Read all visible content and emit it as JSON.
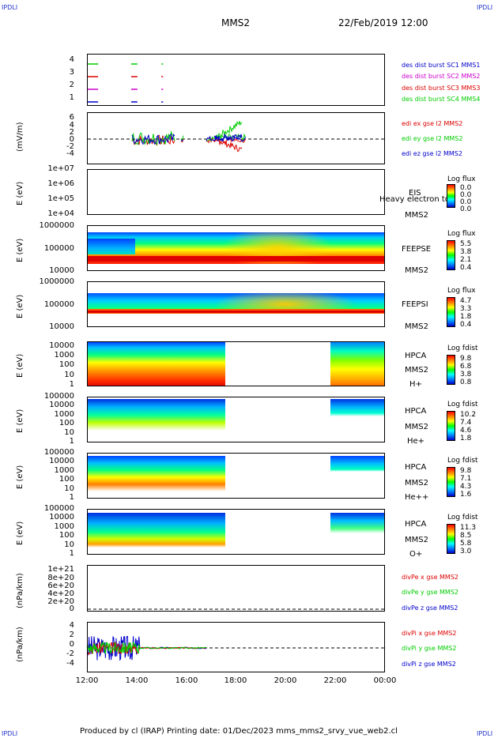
{
  "corner_label": "IPDLI",
  "header": {
    "spacecraft": "MMS2",
    "datetime": "22/Feb/2019 12:00"
  },
  "footer": "Produced by cl (IRAP)   Printing date: 01/Dec/2023   mms_mms2_srvy_vue_web2.cl",
  "x_ticks": [
    "12:00",
    "14:00",
    "16:00",
    "18:00",
    "20:00",
    "22:00",
    "00:00"
  ],
  "panels": {
    "burst": {
      "y_ticks": [
        "4",
        "3",
        "2",
        "1"
      ],
      "legend": [
        "des dist burst SC1 MMS1",
        "des dist burst SC2 MMS2",
        "des dist burst SC3 MMS3",
        "des dist burst SC4 MMS4"
      ],
      "colors": [
        "#0000cc",
        "#cc00cc",
        "#dd0000",
        "#00cc00"
      ]
    },
    "edi": {
      "ylabel": "(mV/m)",
      "y_ticks": [
        "6",
        "4",
        "2",
        "0",
        "-2",
        "-4"
      ],
      "legend": [
        "edi ex gse l2 MMS2",
        "edi ey gse l2 MMS2",
        "edi ez gse l2 MMS2"
      ],
      "colors": [
        "#dd0000",
        "#00cc00",
        "#0000cc"
      ]
    },
    "eis": {
      "ylabel": "E (eV)",
      "y_ticks": [
        "1e+07",
        "1e+06",
        "1e+05",
        "1e+04"
      ],
      "instrument": "EIS",
      "overlay_text": "Heavy electron to",
      "spacecraft": "MMS2",
      "cbar_title": "Log flux",
      "cbar_values": [
        "0.0",
        "0.0",
        "0.0",
        "0.0"
      ]
    },
    "feepse": {
      "ylabel": "E (eV)",
      "y_ticks": [
        "1000000",
        "100000",
        "10000"
      ],
      "instrument": "FEEPSE",
      "spacecraft": "MMS2",
      "cbar_title": "Log flux",
      "cbar_values": [
        "5.5",
        "3.8",
        "2.1",
        "0.4"
      ]
    },
    "feepsi": {
      "ylabel": "E (eV)",
      "y_ticks": [
        "1000000",
        "100000",
        "10000"
      ],
      "instrument": "FEEPSI",
      "spacecraft": "MMS2",
      "cbar_title": "Log flux",
      "cbar_values": [
        "4.7",
        "3.3",
        "1.8",
        "0.4"
      ]
    },
    "hpca_h": {
      "ylabel": "E (eV)",
      "y_ticks": [
        "10000",
        "1000",
        "100",
        "10",
        "1"
      ],
      "instrument": "HPCA",
      "spacecraft": "MMS2",
      "species": "H+",
      "cbar_title": "Log fdist",
      "cbar_values": [
        "9.8",
        "6.8",
        "3.8",
        "0.8"
      ]
    },
    "hpca_he": {
      "ylabel": "E (eV)",
      "y_ticks": [
        "100000",
        "10000",
        "1000",
        "100",
        "10",
        "1"
      ],
      "instrument": "HPCA",
      "spacecraft": "MMS2",
      "species": "He+",
      "cbar_title": "Log fdist",
      "cbar_values": [
        "10.2",
        "7.4",
        "4.6",
        "1.8"
      ]
    },
    "hpca_hepp": {
      "ylabel": "E (eV)",
      "y_ticks": [
        "100000",
        "10000",
        "1000",
        "100",
        "10",
        "1"
      ],
      "instrument": "HPCA",
      "spacecraft": "MMS2",
      "species": "He++",
      "cbar_title": "Log fdist",
      "cbar_values": [
        "9.8",
        "7.1",
        "4.3",
        "1.6"
      ]
    },
    "hpca_o": {
      "ylabel": "E (eV)",
      "y_ticks": [
        "100000",
        "10000",
        "1000",
        "100",
        "10",
        "1"
      ],
      "instrument": "HPCA",
      "spacecraft": "MMS2",
      "species": "O+",
      "cbar_title": "Log fdist",
      "cbar_values": [
        "11.3",
        "8.5",
        "5.8",
        "3.0"
      ]
    },
    "divpe": {
      "ylabel": "(nPa/km)",
      "y_ticks": [
        "1e+21",
        "8e+20",
        "6e+20",
        "4e+20",
        "2e+20",
        "0"
      ],
      "legend": [
        "divPe x gse MMS2",
        "divPe y gse MMS2",
        "divPe z gse MMS2"
      ],
      "colors": [
        "#dd0000",
        "#00cc00",
        "#0000cc"
      ]
    },
    "divpi": {
      "ylabel": "(nPa/km)",
      "y_ticks": [
        "4",
        "2",
        "0",
        "-2",
        "-4"
      ],
      "legend": [
        "divPi x gse MMS2",
        "divPi y gse MMS2",
        "divPi z gse MMS2"
      ],
      "colors": [
        "#dd0000",
        "#00cc00",
        "#0000cc"
      ]
    }
  },
  "chart_data": {
    "type": "line",
    "title": "MMS2",
    "x_range": [
      "12:00",
      "00:00"
    ],
    "burst_intervals": [
      {
        "sc": 1,
        "intervals": [
          [
            "12:00",
            "12:25"
          ],
          [
            "13:45",
            "14:00"
          ],
          [
            "14:58",
            "15:02"
          ]
        ]
      },
      {
        "sc": 2,
        "intervals": [
          [
            "12:00",
            "12:25"
          ],
          [
            "13:45",
            "14:00"
          ],
          [
            "14:58",
            "15:02"
          ]
        ]
      },
      {
        "sc": 3,
        "intervals": [
          [
            "12:00",
            "12:25"
          ],
          [
            "13:45",
            "14:00"
          ],
          [
            "14:58",
            "15:02"
          ]
        ]
      },
      {
        "sc": 4,
        "intervals": [
          [
            "12:00",
            "12:25"
          ],
          [
            "13:45",
            "14:00"
          ],
          [
            "14:58",
            "15:02"
          ]
        ]
      }
    ],
    "hpca_data_gap": [
      "17:35",
      "21:50"
    ],
    "edi_ylim": [
      -6,
      6
    ],
    "divpi_ylim": [
      -5,
      5
    ],
    "divpe_ylim": [
      0,
      1.1e+21
    ]
  }
}
